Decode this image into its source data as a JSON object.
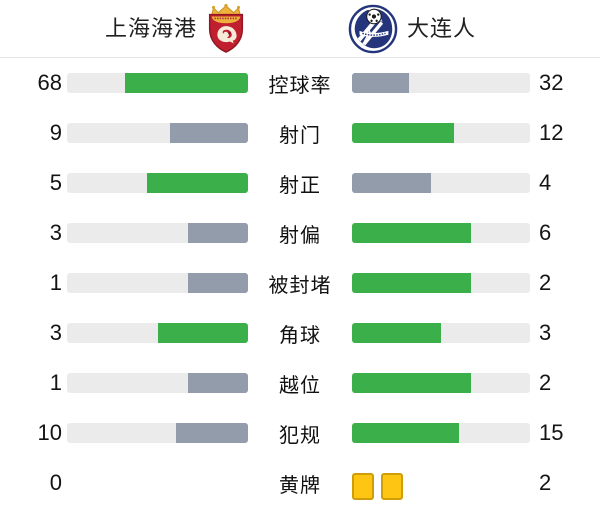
{
  "header": {
    "home_name": "上海海港",
    "away_name": "大连人"
  },
  "icons": {
    "home_logo": "shanghai-port-crest-icon",
    "away_logo": "dalian-pro-crest-icon",
    "yellow_card": "yellow-card-icon"
  },
  "colors": {
    "green": "#3bb04a",
    "gray": "#929cab",
    "track": "#ebebeb",
    "yellow": "#ffc513",
    "yellow_border": "#cf9d05",
    "home_crest_red": "#c01f2f",
    "home_crest_gold": "#eeb23c",
    "away_crest_blue": "#24357c"
  },
  "chart_data": {
    "type": "bar",
    "title": "上海海港 vs 大连人",
    "orientation": "horizontal-paired",
    "categories": [
      "控球率",
      "射门",
      "射正",
      "射偏",
      "被封堵",
      "角球",
      "越位",
      "犯规",
      "黄牌"
    ],
    "series": [
      {
        "name": "上海海港",
        "values": [
          68,
          9,
          5,
          3,
          1,
          3,
          1,
          10,
          0
        ]
      },
      {
        "name": "大连人",
        "values": [
          32,
          12,
          4,
          6,
          2,
          3,
          2,
          15,
          2
        ]
      }
    ],
    "legend_position": "top",
    "grid": false,
    "notes": "fill length = value/(home+away); larger value colored green, smaller gray; 黄牌 row shown as yellow card icons instead of bars"
  },
  "stats": {
    "rows": [
      {
        "label": "控球率",
        "home": 68,
        "away": 32,
        "home_color": "green",
        "away_color": "gray",
        "type": "bar"
      },
      {
        "label": "射门",
        "home": 9,
        "away": 12,
        "home_color": "gray",
        "away_color": "green",
        "type": "bar"
      },
      {
        "label": "射正",
        "home": 5,
        "away": 4,
        "home_color": "green",
        "away_color": "gray",
        "type": "bar"
      },
      {
        "label": "射偏",
        "home": 3,
        "away": 6,
        "home_color": "gray",
        "away_color": "green",
        "type": "bar"
      },
      {
        "label": "被封堵",
        "home": 1,
        "away": 2,
        "home_color": "gray",
        "away_color": "green",
        "type": "bar"
      },
      {
        "label": "角球",
        "home": 3,
        "away": 3,
        "home_color": "green",
        "away_color": "green",
        "type": "bar"
      },
      {
        "label": "越位",
        "home": 1,
        "away": 2,
        "home_color": "gray",
        "away_color": "green",
        "type": "bar"
      },
      {
        "label": "犯规",
        "home": 10,
        "away": 15,
        "home_color": "gray",
        "away_color": "green",
        "type": "bar"
      },
      {
        "label": "黄牌",
        "home": 0,
        "away": 2,
        "home_color": "none",
        "away_color": "cards",
        "type": "cards"
      }
    ]
  }
}
